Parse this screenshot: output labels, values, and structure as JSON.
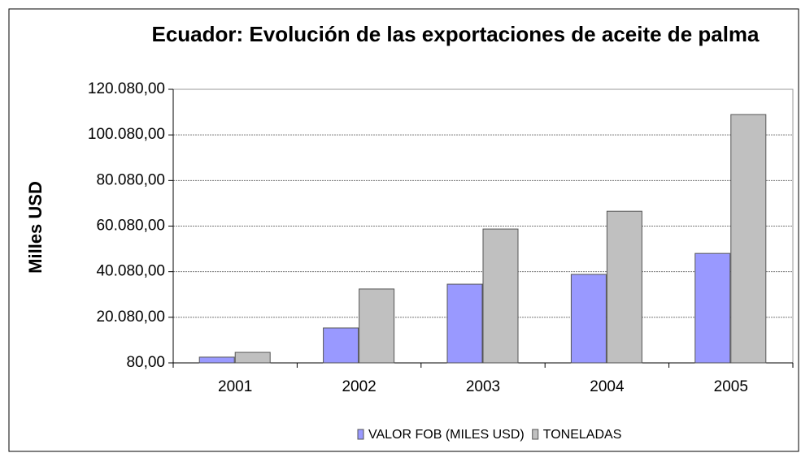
{
  "chart_data": {
    "type": "bar",
    "title": "Ecuador: Evolución de las exportaciones de aceite de palma",
    "y_axis_label": "Milles USD",
    "categories": [
      "2001",
      "2002",
      "2003",
      "2004",
      "2005"
    ],
    "series": [
      {
        "name": "VALOR FOB (MILES USD)",
        "color": "#9999ff",
        "values": [
          2600,
          15400,
          34600,
          38900,
          48100
        ]
      },
      {
        "name": "TONELADAS",
        "color": "#c0c0c0",
        "values": [
          4700,
          32500,
          58800,
          66600,
          109000
        ]
      }
    ],
    "ylim": [
      80,
      120080
    ],
    "yticks": [
      {
        "value": 80,
        "label": "80,00"
      },
      {
        "value": 20080,
        "label": "20.080,00"
      },
      {
        "value": 40080,
        "label": "40.080,00"
      },
      {
        "value": 60080,
        "label": "60.080,00"
      },
      {
        "value": 80080,
        "label": "80.080,00"
      },
      {
        "value": 100080,
        "label": "100.080,00"
      },
      {
        "value": 120080,
        "label": "120.080,00"
      }
    ],
    "grid": true,
    "legend": "bottom"
  }
}
